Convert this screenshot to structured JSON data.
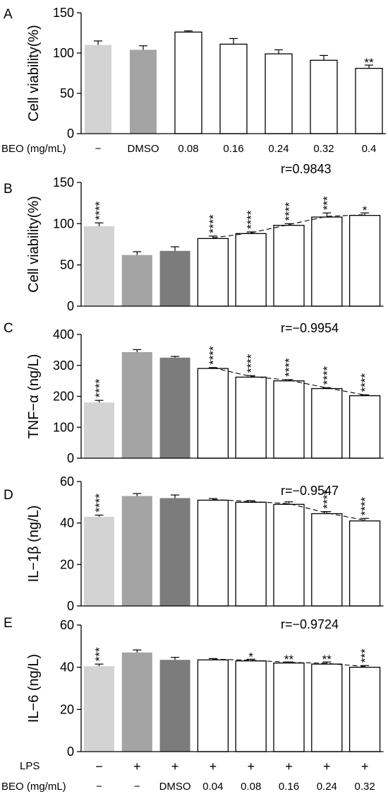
{
  "figure": {
    "rows": {
      "top": {
        "label": "BEO (mg/mL)",
        "values": [
          "−",
          "DMSO",
          "0.08",
          "0.16",
          "0.24",
          "0.32",
          "0.4"
        ]
      },
      "lps": {
        "label": "LPS",
        "values": [
          "−",
          "+",
          "+",
          "+",
          "+",
          "+",
          "+",
          "+"
        ]
      },
      "beo": {
        "label": "BEO (mg/mL)",
        "values": [
          "−",
          "−",
          "DMSO",
          "0.04",
          "0.08",
          "0.16",
          "0.24",
          "0.32"
        ]
      }
    },
    "colors": {
      "light_gray": "#d3d3d3",
      "mid_gray": "#a4a4a4",
      "dark_gray": "#7c7c7c",
      "white": "#ffffff"
    }
  },
  "chart_data": [
    {
      "panel": "A",
      "type": "bar",
      "ylabel": "Cell viability(%)",
      "ylim": [
        0,
        150
      ],
      "yticks": [
        0,
        50,
        100,
        150
      ],
      "values": [
        110,
        104,
        126,
        111,
        99,
        91,
        81
      ],
      "errors": [
        5,
        5,
        1.5,
        7,
        5,
        6,
        4
      ],
      "fills": [
        "light_gray",
        "mid_gray",
        "white",
        "white",
        "white",
        "white",
        "white"
      ],
      "significance": [
        "",
        "",
        "",
        "",
        "",
        "",
        "**"
      ],
      "r_text": "",
      "trend": false
    },
    {
      "panel": "B",
      "type": "bar",
      "ylabel": "Cell viability(%)",
      "ylim": [
        0,
        150
      ],
      "yticks": [
        0,
        50,
        100,
        150
      ],
      "values": [
        97,
        62,
        67,
        82,
        88,
        98,
        108,
        110
      ],
      "errors": [
        4,
        4,
        5,
        3,
        2,
        2,
        5,
        3
      ],
      "fills": [
        "light_gray",
        "mid_gray",
        "dark_gray",
        "white",
        "white",
        "white",
        "white",
        "white"
      ],
      "significance": [
        "****",
        "",
        "",
        "****",
        "****",
        "****",
        "***",
        "*"
      ],
      "r_text": "r=0.9843",
      "trend": true
    },
    {
      "panel": "C",
      "type": "bar",
      "ylabel": "TNF−α (ng/L)",
      "ylim": [
        0,
        400
      ],
      "yticks": [
        0,
        100,
        200,
        300,
        400
      ],
      "values": [
        180,
        343,
        325,
        290,
        262,
        250,
        225,
        202
      ],
      "errors": [
        7,
        8,
        4,
        3,
        5,
        4,
        3,
        3
      ],
      "fills": [
        "light_gray",
        "mid_gray",
        "dark_gray",
        "white",
        "white",
        "white",
        "white",
        "white"
      ],
      "significance": [
        "****",
        "",
        "",
        "****",
        "****",
        "****",
        "****",
        "****"
      ],
      "r_text": "r=−0.9954",
      "trend": true
    },
    {
      "panel": "D",
      "type": "bar",
      "ylabel": "IL−1β (ng/L)",
      "ylim": [
        0,
        60
      ],
      "yticks": [
        0,
        20,
        40,
        60
      ],
      "values": [
        43,
        53,
        52,
        51,
        50,
        49,
        44.5,
        41
      ],
      "errors": [
        0.8,
        1.2,
        1.5,
        0.8,
        0.8,
        1.2,
        1,
        1.2
      ],
      "fills": [
        "light_gray",
        "mid_gray",
        "dark_gray",
        "white",
        "white",
        "white",
        "white",
        "white"
      ],
      "significance": [
        "****",
        "",
        "",
        "",
        "",
        "",
        "****",
        "****"
      ],
      "r_text": "r=−0.9547",
      "trend": true
    },
    {
      "panel": "E",
      "type": "bar",
      "ylabel": "IL−6 (ng/L)",
      "ylim": [
        0,
        60
      ],
      "yticks": [
        0,
        20,
        40,
        60
      ],
      "values": [
        40.5,
        47,
        43.5,
        43.5,
        43,
        42,
        41.5,
        40
      ],
      "errors": [
        1,
        1.2,
        1.2,
        0.6,
        0.8,
        0.5,
        1,
        0.8
      ],
      "fills": [
        "light_gray",
        "mid_gray",
        "dark_gray",
        "white",
        "white",
        "white",
        "white",
        "white"
      ],
      "significance": [
        "***",
        "",
        "",
        "",
        "*",
        "**",
        "**",
        "***"
      ],
      "r_text": "r=−0.9724",
      "trend": true
    }
  ]
}
